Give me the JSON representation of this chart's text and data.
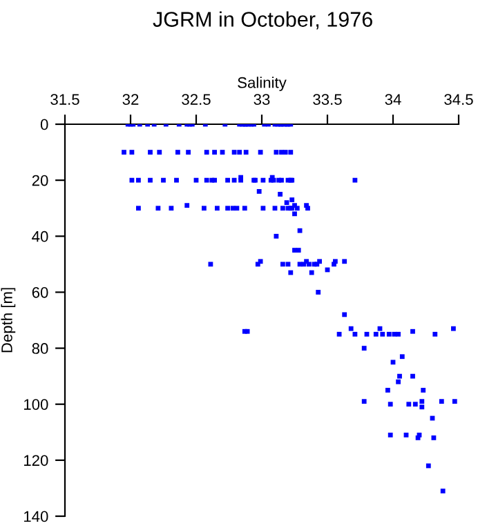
{
  "chart_data": {
    "type": "scatter",
    "title": "JGRM in October, 1976",
    "xlabel": "Salinity",
    "ylabel": "Depth [m]",
    "xlim": [
      31.5,
      34.5
    ],
    "xticks": [
      31.5,
      32,
      32.5,
      33,
      33.5,
      34,
      34.5
    ],
    "ylim": [
      140,
      0
    ],
    "yticks": [
      0,
      20,
      40,
      60,
      80,
      100,
      120,
      140
    ],
    "marker": "square",
    "series": [
      {
        "color": "#0000ff",
        "x": [
          31.98,
          32.0,
          32.02,
          32.07,
          32.13,
          32.18,
          32.27,
          32.37,
          32.43,
          32.45,
          32.47,
          32.57,
          32.72,
          32.83,
          32.85,
          32.87,
          32.88,
          32.9,
          32.92,
          32.94,
          33.02,
          33.05,
          33.1,
          33.12,
          33.14,
          33.15,
          33.17,
          33.19,
          33.2,
          33.22,
          31.95,
          32.01,
          32.15,
          32.22,
          32.36,
          32.44,
          32.58,
          32.64,
          32.7,
          32.79,
          32.83,
          32.88,
          32.99,
          33.11,
          33.15,
          33.18,
          33.22,
          32.01,
          32.06,
          32.15,
          32.25,
          32.35,
          32.5,
          32.58,
          32.62,
          32.64,
          32.74,
          32.79,
          32.84,
          32.94,
          32.95,
          33.01,
          33.07,
          33.09,
          33.13,
          33.15,
          33.2,
          33.22,
          33.23,
          33.71,
          32.84,
          33.08,
          32.98,
          33.14,
          33.19,
          33.23,
          33.25,
          33.25,
          32.06,
          32.21,
          32.31,
          32.43,
          32.56,
          32.66,
          32.74,
          32.78,
          32.81,
          32.87,
          33.01,
          33.1,
          33.16,
          33.2,
          33.22,
          33.23,
          33.27,
          33.34,
          33.35,
          33.29,
          33.11,
          33.25,
          33.28,
          32.99,
          33.34,
          33.44,
          33.56,
          33.63,
          32.61,
          32.97,
          33.16,
          33.2,
          33.29,
          33.32,
          33.36,
          33.4,
          33.42,
          33.55,
          33.5,
          33.22,
          33.38,
          33.43,
          33.63,
          33.68,
          33.9,
          34.46,
          32.87,
          32.89,
          34.15,
          33.59,
          33.71,
          33.8,
          33.87,
          33.92,
          33.97,
          34.01,
          34.04,
          34.32,
          33.78,
          34.07,
          34.0,
          34.05,
          34.15,
          34.04,
          33.96,
          34.23,
          33.78,
          34.22,
          34.37,
          34.47,
          33.98,
          34.12,
          34.17,
          34.22,
          34.3,
          33.98,
          34.2,
          34.1,
          34.19,
          34.31,
          34.27,
          34.38
        ],
        "values": [
          0,
          0,
          0,
          0,
          0,
          0,
          0,
          0,
          0,
          0,
          0,
          0,
          0,
          0,
          0,
          0,
          0,
          0,
          0,
          0,
          0,
          0,
          0,
          0,
          0,
          0,
          0,
          0,
          0,
          0,
          10,
          10,
          10,
          10,
          10,
          10,
          10,
          10,
          10,
          10,
          10,
          10,
          10,
          10,
          10,
          10,
          10,
          20,
          20,
          20,
          20,
          20,
          20,
          20,
          20,
          20,
          20,
          20,
          20,
          20,
          20,
          20,
          20,
          20,
          20,
          20,
          20,
          20,
          20,
          20,
          19,
          19,
          24,
          25,
          28,
          27,
          29,
          32,
          30,
          30,
          30,
          29,
          30,
          30,
          30,
          30,
          30,
          30,
          30,
          30,
          30,
          30,
          30,
          30,
          30,
          29,
          30,
          38,
          40,
          45,
          45,
          49,
          49,
          49,
          49,
          49,
          50,
          50,
          50,
          50,
          50,
          50,
          50,
          50,
          50,
          50,
          52,
          53,
          53,
          60,
          68,
          73,
          73,
          73,
          74,
          74,
          74,
          75,
          75,
          75,
          75,
          75,
          75,
          75,
          75,
          75,
          80,
          83,
          85,
          90,
          90,
          92,
          95,
          95,
          99,
          99,
          99,
          99,
          100,
          100,
          100,
          101,
          105,
          111,
          111,
          111,
          112,
          112,
          122,
          131
        ]
      }
    ]
  }
}
